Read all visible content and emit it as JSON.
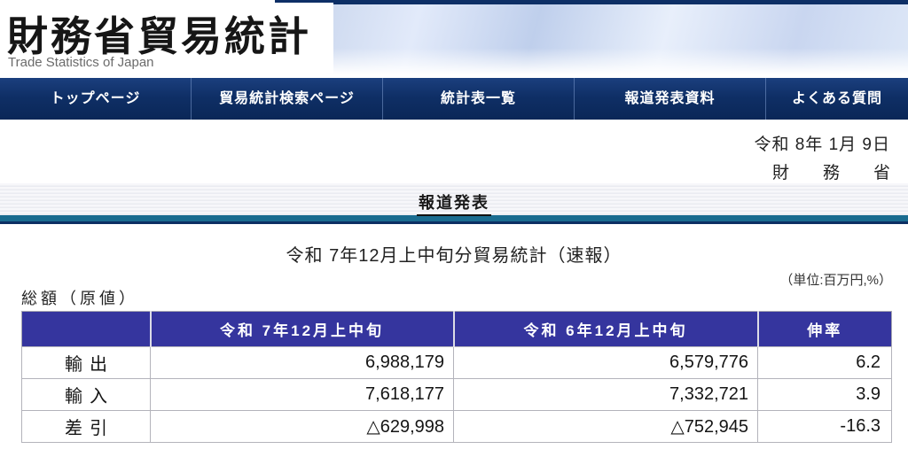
{
  "header": {
    "site_title": "財務省貿易統計",
    "site_subtitle": "Trade Statistics of Japan"
  },
  "nav": {
    "items": [
      {
        "label": "トップページ"
      },
      {
        "label": "貿易統計検索ページ"
      },
      {
        "label": "統計表一覧"
      },
      {
        "label": "報道発表資料"
      },
      {
        "label": "よくある質問"
      }
    ]
  },
  "document": {
    "date": "令和 8年 1月 9日",
    "ministry": "財　　務　　省",
    "section_heading": "報道発表",
    "title": "令和 7年12月上中旬分貿易統計（速報）",
    "table_caption": "総額（原値）",
    "unit_note": "（単位:百万円,%）"
  },
  "table": {
    "columns": [
      "",
      "令和 7年12月上中旬",
      "令和 6年12月上中旬",
      "伸率"
    ],
    "rows": [
      {
        "label": "輸出",
        "current": "6,988,179",
        "previous": "6,579,776",
        "growth": "6.2"
      },
      {
        "label": "輸入",
        "current": "7,618,177",
        "previous": "7,332,721",
        "growth": "3.9"
      },
      {
        "label": "差引",
        "current": "△629,998",
        "previous": "△752,945",
        "growth": "-16.3"
      }
    ]
  },
  "colors": {
    "nav_blue": "#0f2f66",
    "table_header_blue": "#35359e",
    "teal_bar": "#1a6c90",
    "banner_light_blue": "#cdd9ef"
  }
}
